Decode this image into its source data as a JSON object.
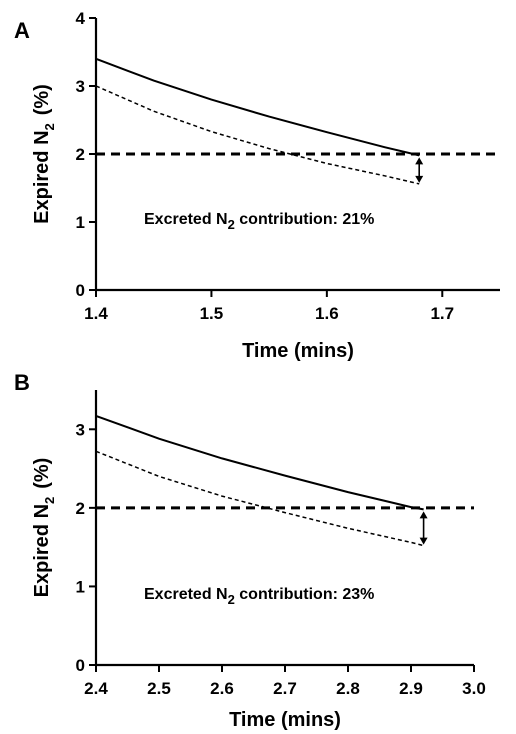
{
  "chart_data": [
    {
      "type": "line",
      "panel_label": "A",
      "xlabel": "Time (mins)",
      "ylabel": {
        "main": "Expired N",
        "sub": "2",
        "unit": "(%)"
      },
      "xlim": [
        1.4,
        1.75
      ],
      "ylim": [
        0,
        4
      ],
      "xticks": [
        1.4,
        1.5,
        1.6,
        1.7
      ],
      "yticks": [
        0,
        1,
        2,
        3,
        4
      ],
      "xtick_labels": [
        "1.4",
        "1.5",
        "1.6",
        "1.7"
      ],
      "ytick_labels": [
        "0",
        "1",
        "2",
        "3",
        "4"
      ],
      "series": [
        {
          "style": "solid",
          "x": [
            1.4,
            1.45,
            1.5,
            1.55,
            1.6,
            1.65,
            1.68
          ],
          "y": [
            3.4,
            3.08,
            2.8,
            2.55,
            2.32,
            2.1,
            1.98
          ]
        },
        {
          "style": "dashed-thin",
          "x": [
            1.4,
            1.45,
            1.5,
            1.55,
            1.6,
            1.65,
            1.68
          ],
          "y": [
            3.0,
            2.63,
            2.33,
            2.08,
            1.86,
            1.68,
            1.56
          ]
        },
        {
          "style": "dashed-thick",
          "x": [
            1.4,
            1.75
          ],
          "y": [
            2.0,
            2.0
          ]
        }
      ],
      "arrow": {
        "x": 1.68,
        "y_from": 1.98,
        "y_to": 1.56
      },
      "annotation": {
        "pre": "Excreted N",
        "sub": "2",
        "post": " contribution: 21%",
        "x": 1.4,
        "y": 0.97
      },
      "grid": false
    },
    {
      "type": "line",
      "panel_label": "B",
      "xlabel": "Time (mins)",
      "ylabel": {
        "main": "Expired N",
        "sub": "2",
        "unit": "(%)"
      },
      "xlim": [
        2.4,
        3.0
      ],
      "ylim": [
        0,
        3.5
      ],
      "xticks": [
        2.4,
        2.5,
        2.6,
        2.7,
        2.8,
        2.9,
        3.0
      ],
      "yticks": [
        0,
        1,
        2,
        3
      ],
      "xtick_labels": [
        "2.4",
        "2.5",
        "2.6",
        "2.7",
        "2.8",
        "2.9",
        "3.0"
      ],
      "ytick_labels": [
        "0",
        "1",
        "2",
        "3"
      ],
      "series": [
        {
          "style": "solid",
          "x": [
            2.4,
            2.5,
            2.6,
            2.7,
            2.8,
            2.9,
            2.92
          ],
          "y": [
            3.17,
            2.88,
            2.63,
            2.41,
            2.2,
            2.01,
            1.98
          ]
        },
        {
          "style": "dashed-thin",
          "x": [
            2.4,
            2.5,
            2.6,
            2.7,
            2.8,
            2.9,
            2.92
          ],
          "y": [
            2.72,
            2.4,
            2.15,
            1.94,
            1.74,
            1.56,
            1.52
          ]
        },
        {
          "style": "dashed-thick",
          "x": [
            2.4,
            3.0
          ],
          "y": [
            2.0,
            2.0
          ]
        }
      ],
      "arrow": {
        "x": 2.92,
        "y_from": 1.98,
        "y_to": 1.52
      },
      "annotation": {
        "pre": "Excreted N",
        "sub": "2",
        "post": " contribution: 23%",
        "x": 2.4,
        "y": 0.84
      },
      "grid": false
    }
  ]
}
